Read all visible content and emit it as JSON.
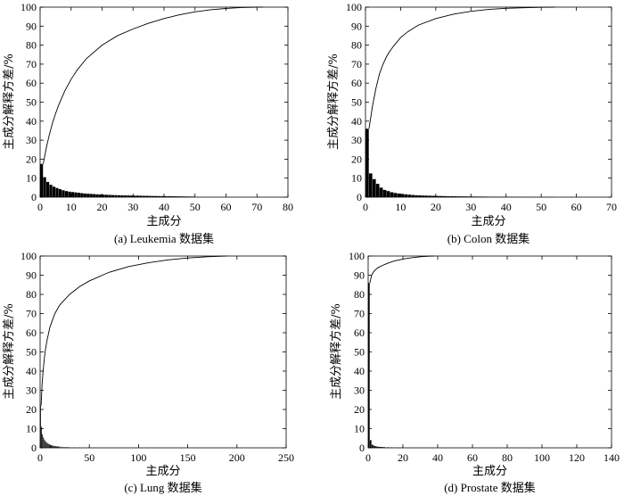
{
  "chart_data": [
    {
      "type": "bar",
      "caption": "(a) Leukemia 数据集",
      "xlabel": "主成分",
      "ylabel": "主成分解释方差/%",
      "xlim": [
        0,
        80
      ],
      "ylim": [
        0,
        100
      ],
      "xticks": [
        0,
        10,
        20,
        30,
        40,
        50,
        60,
        70,
        80
      ],
      "yticks": [
        0,
        10,
        20,
        30,
        40,
        50,
        60,
        70,
        80,
        90,
        100
      ],
      "bars": {
        "x": [
          1,
          2,
          3,
          4,
          5,
          6,
          7,
          8,
          9,
          10,
          11,
          12,
          13,
          14,
          15,
          16,
          17,
          18,
          19,
          20,
          21,
          22,
          23,
          24,
          25,
          26,
          27,
          28,
          29,
          30,
          31,
          32,
          33,
          34,
          35,
          36,
          37,
          38,
          39,
          40,
          41,
          42,
          43,
          44,
          45,
          46,
          47,
          48,
          49,
          50
        ],
        "values": [
          17.5,
          10.5,
          8,
          6.5,
          5.5,
          4.8,
          4.2,
          3.6,
          3.2,
          2.9,
          2.7,
          2.5,
          2.3,
          2.1,
          1.9,
          1.8,
          1.7,
          1.6,
          1.5,
          1.4,
          1.3,
          1.25,
          1.2,
          1.1,
          1.05,
          1.0,
          0.95,
          0.9,
          0.9,
          0.85,
          0.8,
          0.8,
          0.75,
          0.7,
          0.7,
          0.65,
          0.6,
          0.6,
          0.55,
          0.55,
          0.5,
          0.5,
          0.45,
          0.45,
          0.4,
          0.4,
          0.35,
          0.35,
          0.3,
          0.3
        ]
      },
      "cumulative": {
        "x": [
          1,
          2,
          3,
          4,
          5,
          6,
          8,
          10,
          12,
          15,
          20,
          25,
          30,
          35,
          40,
          45,
          50,
          55,
          60,
          65,
          70,
          72
        ],
        "values": [
          17.5,
          26,
          33,
          39,
          44,
          48.5,
          56,
          62,
          67,
          73,
          80,
          85,
          88.5,
          91.5,
          94,
          96,
          97.5,
          98.6,
          99.3,
          99.8,
          100,
          100
        ]
      }
    },
    {
      "type": "bar",
      "caption": "(b) Colon 数据集",
      "xlabel": "主成分",
      "ylabel": "主成分解释方差/%",
      "xlim": [
        0,
        70
      ],
      "ylim": [
        0,
        100
      ],
      "xticks": [
        0,
        10,
        20,
        30,
        40,
        50,
        60,
        70
      ],
      "yticks": [
        0,
        10,
        20,
        30,
        40,
        50,
        60,
        70,
        80,
        90,
        100
      ],
      "bars": {
        "x": [
          1,
          2,
          3,
          4,
          5,
          6,
          7,
          8,
          9,
          10,
          11,
          12,
          13,
          14,
          15,
          16,
          17,
          18,
          19,
          20,
          21,
          22,
          23,
          24,
          25,
          26,
          27,
          28,
          29,
          30,
          31,
          32,
          33,
          34,
          35,
          36,
          37,
          38,
          39,
          40,
          41,
          42,
          43,
          44,
          45,
          46,
          47,
          48,
          49,
          50,
          51,
          52,
          53,
          54
        ],
        "values": [
          36,
          12.5,
          9.5,
          7,
          5,
          3.8,
          3.2,
          2.6,
          2.2,
          1.9,
          1.7,
          1.5,
          1.3,
          1.15,
          1.0,
          0.95,
          0.85,
          0.8,
          0.75,
          0.7,
          0.65,
          0.6,
          0.55,
          0.5,
          0.48,
          0.45,
          0.42,
          0.4,
          0.38,
          0.35,
          0.33,
          0.3,
          0.3,
          0.28,
          0.26,
          0.25,
          0.24,
          0.22,
          0.2,
          0.2,
          0.18,
          0.16,
          0.15,
          0.14,
          0.13,
          0.12,
          0.11,
          0.1,
          0.1,
          0.1,
          0.1,
          0.1,
          0.1,
          0.1
        ]
      },
      "cumulative": {
        "x": [
          1,
          2,
          3,
          4,
          5,
          6,
          7,
          8,
          10,
          12,
          15,
          20,
          25,
          30,
          35,
          40,
          45,
          50,
          54
        ],
        "values": [
          36,
          48,
          57.5,
          65,
          70,
          74,
          77,
          79.5,
          84,
          87,
          90.5,
          94,
          96.3,
          97.8,
          98.8,
          99.4,
          99.7,
          99.9,
          100
        ]
      }
    },
    {
      "type": "bar",
      "caption": "(c) Lung 数据集",
      "xlabel": "主成分",
      "ylabel": "主成分解释方差/%",
      "xlim": [
        0,
        250
      ],
      "ylim": [
        0,
        100
      ],
      "xticks": [
        0,
        50,
        100,
        150,
        200,
        250
      ],
      "yticks": [
        0,
        10,
        20,
        30,
        40,
        50,
        60,
        70,
        80,
        90,
        100
      ],
      "bars": {
        "x": [
          1,
          2,
          3,
          4,
          5,
          6,
          7,
          8,
          9,
          10,
          11,
          12,
          13,
          14,
          15,
          16,
          17,
          18,
          19,
          20,
          22,
          24,
          26,
          28,
          30,
          35,
          40,
          45,
          50,
          55,
          60,
          70,
          80,
          90,
          100
        ],
        "values": [
          22,
          11,
          7,
          5.5,
          4.3,
          3.5,
          2.9,
          2.4,
          2.1,
          1.8,
          1.6,
          1.4,
          1.2,
          1.1,
          1.0,
          0.9,
          0.8,
          0.75,
          0.7,
          0.65,
          0.6,
          0.5,
          0.45,
          0.4,
          0.35,
          0.3,
          0.25,
          0.2,
          0.2,
          0.15,
          0.15,
          0.1,
          0.1,
          0.1,
          0.1
        ]
      },
      "cumulative": {
        "x": [
          1,
          2,
          3,
          5,
          7,
          10,
          15,
          20,
          30,
          40,
          50,
          70,
          90,
          110,
          130,
          150,
          170,
          185,
          190
        ],
        "values": [
          22,
          33,
          40,
          50,
          56,
          63,
          70,
          74.5,
          80,
          84,
          87,
          91.5,
          94.5,
          96.5,
          98,
          99,
          99.6,
          99.9,
          100
        ]
      }
    },
    {
      "type": "bar",
      "caption": "(d) Prostate 数据集",
      "xlabel": "主成分",
      "ylabel": "主成分解释方差/%",
      "xlim": [
        0,
        140
      ],
      "ylim": [
        0,
        100
      ],
      "xticks": [
        0,
        20,
        40,
        60,
        80,
        100,
        120,
        140
      ],
      "yticks": [
        0,
        10,
        20,
        30,
        40,
        50,
        60,
        70,
        80,
        90,
        100
      ],
      "bars": {
        "x": [
          1,
          2,
          3,
          4,
          5,
          6,
          7,
          8,
          9,
          10,
          12,
          14,
          16,
          18,
          20,
          25,
          30,
          35
        ],
        "values": [
          86,
          4,
          1.6,
          1.1,
          0.8,
          0.6,
          0.5,
          0.45,
          0.4,
          0.35,
          0.3,
          0.25,
          0.2,
          0.2,
          0.15,
          0.1,
          0.1,
          0.1
        ]
      },
      "cumulative": {
        "x": [
          1,
          2,
          3,
          4,
          5,
          6,
          8,
          10,
          12,
          15,
          18,
          21,
          25,
          30,
          35,
          38
        ],
        "values": [
          86,
          90,
          91.6,
          92.7,
          93.5,
          94.1,
          95,
          95.8,
          96.5,
          97.4,
          98,
          98.6,
          99.1,
          99.6,
          99.9,
          100
        ]
      }
    }
  ]
}
